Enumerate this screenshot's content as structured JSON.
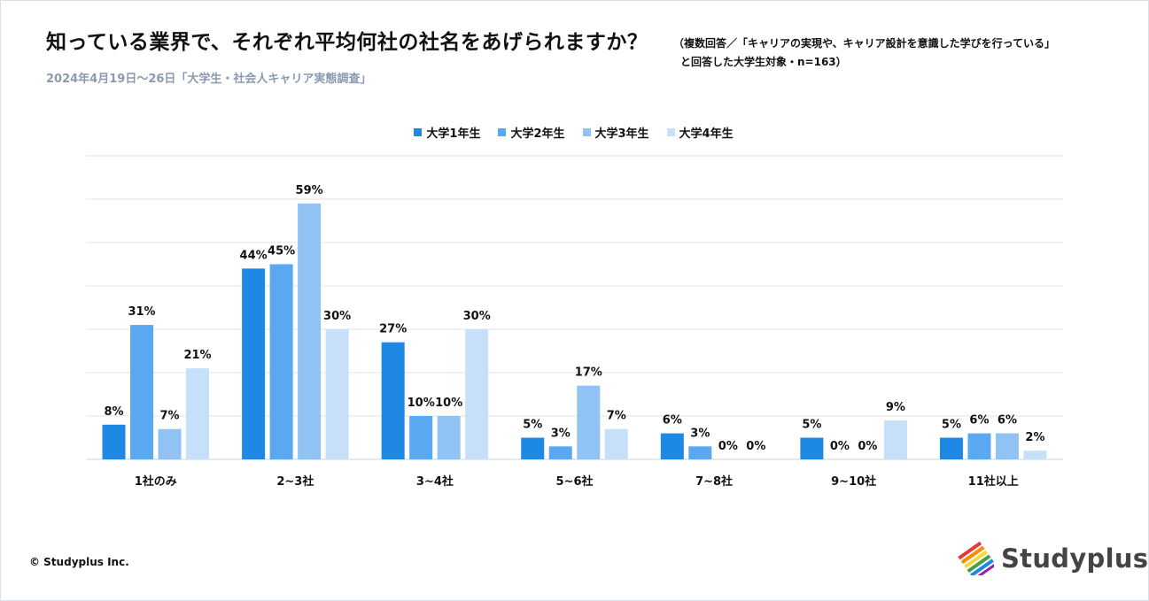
{
  "header": {
    "title": "知っている業界で、それぞれ平均何社の社名をあげられますか？",
    "note_line1": "（複数回答／「キャリアの実現や、キャリア設計を意識した学びを行っている」",
    "note_line2": "と回答した大学生対象・n=163）",
    "subtitle": "2024年4月19日～26日「大学生・社会人キャリア実態調査」"
  },
  "footer": {
    "copyright": "© Studyplus Inc.",
    "logo_text": "Studyplus",
    "logo_icon": "studyplus-stripes-logo"
  },
  "chart_data": {
    "type": "bar",
    "categories": [
      "1社のみ",
      "2~3社",
      "3~4社",
      "5~6社",
      "7~8社",
      "9~10社",
      "11社以上"
    ],
    "series": [
      {
        "name": "大学1年生",
        "color": "#1e88e5",
        "values": [
          8,
          44,
          27,
          5,
          6,
          5,
          5
        ]
      },
      {
        "name": "大学2年生",
        "color": "#5aa8f0",
        "values": [
          31,
          45,
          10,
          3,
          3,
          0,
          6
        ]
      },
      {
        "name": "大学3年生",
        "color": "#90c3f3",
        "values": [
          7,
          59,
          10,
          17,
          0,
          0,
          6
        ]
      },
      {
        "name": "大学4年生",
        "color": "#c6e0f9",
        "values": [
          21,
          30,
          30,
          7,
          0,
          9,
          2
        ]
      }
    ],
    "value_suffix": "%",
    "ylim": [
      0,
      70
    ],
    "grid": true,
    "legend_position": "top-center",
    "xlabel": "",
    "ylabel": ""
  }
}
